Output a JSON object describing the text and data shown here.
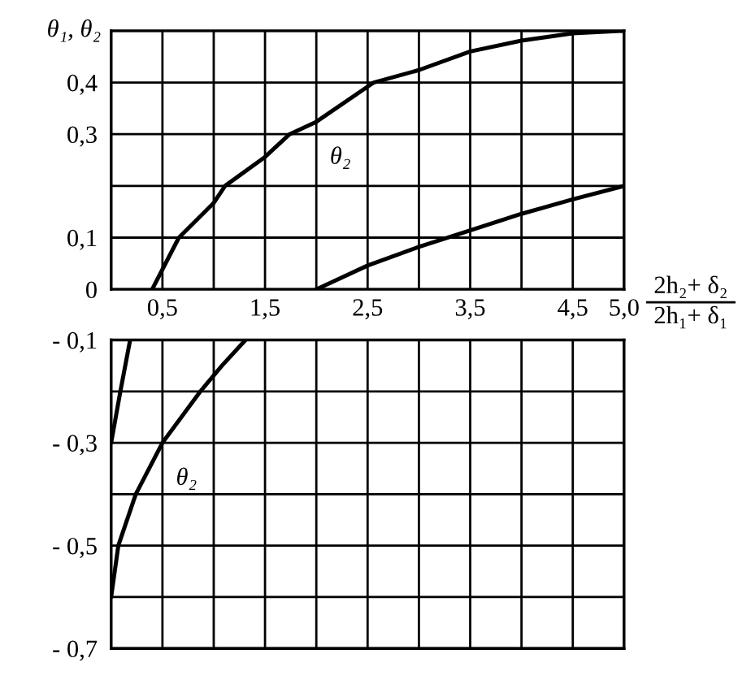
{
  "chart_data": [
    {
      "type": "line",
      "ylabel": "θ₁, θ₂",
      "xlabel": "2h₂+ δ₂\n2h₁+ δ₁",
      "xlim": [
        0,
        5.0
      ],
      "ylim": [
        0,
        0.5
      ],
      "xticks": [
        {
          "value": 0,
          "label": null
        },
        {
          "value": 0.5,
          "label": "0,5"
        },
        {
          "value": 1.0,
          "label": null
        },
        {
          "value": 1.5,
          "label": "1,5"
        },
        {
          "value": 2.0,
          "label": null
        },
        {
          "value": 2.5,
          "label": "2,5"
        },
        {
          "value": 3.0,
          "label": null
        },
        {
          "value": 3.5,
          "label": "3,5"
        },
        {
          "value": 4.0,
          "label": null
        },
        {
          "value": 4.5,
          "label": "4,5"
        },
        {
          "value": 5.0,
          "label": "5,0"
        }
      ],
      "yticks": [
        0,
        {
          "value": 0.1,
          "label": "0,1"
        },
        {
          "value": 0.2,
          "label": null
        },
        {
          "value": 0.3,
          "label": "0,3"
        },
        {
          "value": 0.4,
          "label": "0,4"
        },
        {
          "value": 0.5,
          "label": null
        }
      ],
      "grid": true,
      "series": [
        {
          "name": "θ₂",
          "color": "#000000",
          "x": [
            0.4,
            0.66,
            1.0,
            1.11,
            1.5,
            1.74,
            2.0,
            2.56,
            3.0,
            3.5,
            4.0,
            4.5,
            5.0
          ],
          "values": [
            0,
            0.1,
            0.167,
            0.2,
            0.256,
            0.3,
            0.324,
            0.4,
            0.424,
            0.46,
            0.481,
            0.495,
            0.5
          ]
        },
        {
          "color": "#000000",
          "x": [
            2.0,
            2.5,
            3.0,
            3.5,
            4.0,
            4.5,
            5.0
          ],
          "values": [
            0,
            0.046,
            0.082,
            0.114,
            0.146,
            0.174,
            0.2
          ]
        }
      ]
    },
    {
      "type": "line",
      "tick_labels": "y",
      "xlim": [
        0,
        5.0
      ],
      "ylim": [
        -0.7,
        -0.1
      ],
      "xticks": [
        0,
        0.5,
        1.0,
        1.5,
        2.0,
        2.5,
        3.0,
        3.5,
        4.0,
        4.5,
        5.0
      ],
      "yticks": [
        {
          "value": -0.7,
          "label": "- 0,7"
        },
        {
          "value": -0.6,
          "label": null
        },
        {
          "value": -0.5,
          "label": "- 0,5"
        },
        {
          "value": -0.4,
          "label": null
        },
        {
          "value": -0.3,
          "label": "- 0,3"
        },
        {
          "value": -0.2,
          "label": null
        },
        {
          "value": -0.1,
          "label": "- 0,1"
        }
      ],
      "grid": true,
      "series": [
        {
          "color": "#000000",
          "x": [
            0,
            0.09,
            0.185
          ],
          "values": [
            -0.3,
            -0.2,
            -0.1
          ]
        },
        {
          "name": "θ₂",
          "color": "#000000",
          "x": [
            0,
            0.07,
            0.24,
            0.5,
            0.87,
            1.08,
            1.31
          ],
          "values": [
            -0.6,
            -0.5,
            -0.4,
            -0.3,
            -0.2,
            -0.15,
            -0.1
          ]
        }
      ]
    }
  ]
}
